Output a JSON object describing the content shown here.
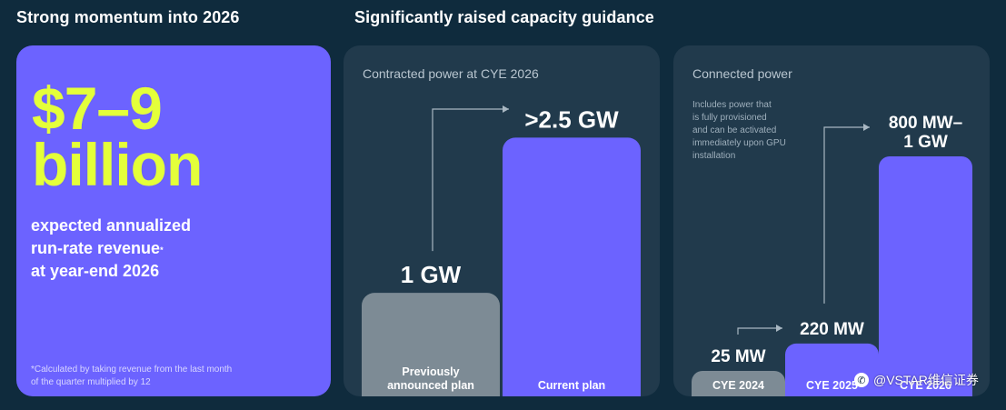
{
  "left": {
    "title": "Strong momentum into 2026",
    "big_value_line1": "$7–9",
    "big_value_line2": "billion",
    "desc_line1": "expected annualized",
    "desc_line2": "run-rate revenue",
    "desc_sup": "*",
    "desc_line3": "at year-end 2026",
    "footnote_line1": "*Calculated by taking revenue from the last month",
    "footnote_line2": "of the quarter multiplied by 12"
  },
  "right": {
    "title": "Significantly raised capacity guidance"
  },
  "colors": {
    "background": "#0f2b3d",
    "panel": "#213a4c",
    "accent_purple": "#6c63ff",
    "accent_yellow": "#e4ff3a",
    "bar_gray": "#7d8b95"
  },
  "chart_data": [
    {
      "type": "bar",
      "title": "Contracted power at CYE 2026",
      "categories": [
        "Previously announced plan",
        "Current plan"
      ],
      "category_lines": [
        [
          "Previously",
          "announced plan"
        ],
        [
          "Current plan"
        ]
      ],
      "values": [
        1,
        2.5
      ],
      "unit": "GW",
      "value_labels": [
        "1 GW",
        ">2.5 GW"
      ],
      "bar_colors": [
        "#7d8b95",
        "#6c63ff"
      ],
      "ylim": [
        0,
        2.6
      ]
    },
    {
      "type": "bar",
      "title": "Connected power",
      "note_lines": [
        "Includes power that",
        "is fully provisioned",
        "and can be activated",
        "immediately upon GPU",
        "installation"
      ],
      "categories": [
        "CYE 2024",
        "CYE 2025",
        "CYE 2026"
      ],
      "values": [
        25,
        220,
        1000
      ],
      "unit": "MW",
      "value_labels": [
        "25 MW",
        "220 MW",
        "800 MW–1 GW"
      ],
      "value_label_lines": [
        [
          "25 MW"
        ],
        [
          "220 MW"
        ],
        [
          "800 MW–",
          "1 GW"
        ]
      ],
      "bar_colors": [
        "#7d8b95",
        "#6c63ff",
        "#6c63ff"
      ]
    }
  ],
  "watermark": {
    "icon": "wechat-icon",
    "text": "@VSTAR维信证券"
  }
}
